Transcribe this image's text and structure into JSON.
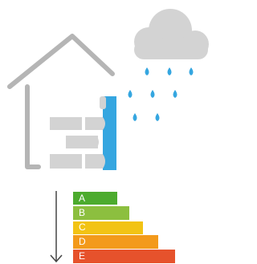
{
  "energy_labels": [
    "A",
    "B",
    "C",
    "D",
    "E"
  ]
}
